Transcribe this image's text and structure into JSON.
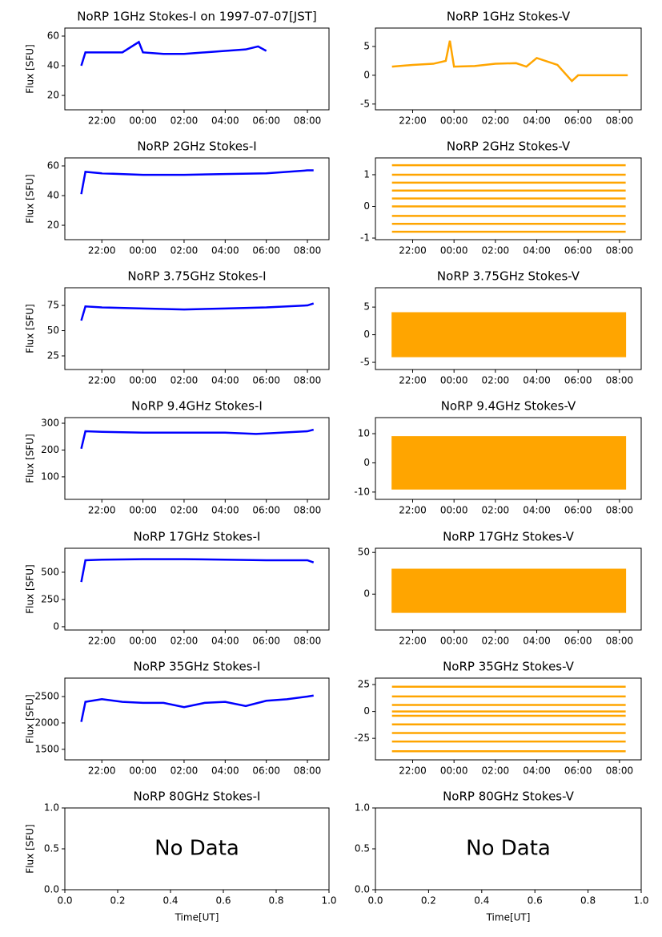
{
  "chart_data": [
    {
      "type": "line",
      "title": "NoRP 1GHz Stokes-I on 1997-07-07[JST]",
      "ylabel": "Flux [SFU]",
      "x": [
        21.0,
        21.2,
        22,
        23,
        23.8,
        24,
        25,
        26,
        27,
        28,
        29,
        29.6,
        30
      ],
      "series": [
        {
          "color": "#0000ff",
          "values": [
            40,
            49,
            49,
            49,
            56,
            49,
            48,
            48,
            49,
            50,
            51,
            53,
            50
          ]
        }
      ],
      "xlim": [
        20.2,
        33.05
      ],
      "xticks": [
        {
          "value": 22,
          "label": "22:00"
        },
        {
          "value": 24,
          "label": "00:00"
        },
        {
          "value": 26,
          "label": "02:00"
        },
        {
          "value": 28,
          "label": "04:00"
        },
        {
          "value": 30,
          "label": "06:00"
        },
        {
          "value": 32,
          "label": "08:00"
        }
      ],
      "ylim": [
        10.3,
        65.4
      ],
      "yticks": [
        20,
        40,
        60
      ]
    },
    {
      "type": "line",
      "title": "NoRP 1GHz Stokes-V",
      "x": [
        21.0,
        22,
        23,
        23.6,
        23.8,
        24,
        25,
        26,
        27,
        27.5,
        28,
        29,
        29.7,
        30,
        32.4
      ],
      "series": [
        {
          "color": "#ffa500",
          "values": [
            1.5,
            1.8,
            2,
            2.5,
            6,
            1.5,
            1.6,
            2,
            2.1,
            1.5,
            3,
            1.8,
            -1,
            0,
            0
          ]
        }
      ],
      "xlim": [
        20.2,
        33.05
      ],
      "xticks": [
        {
          "value": 22,
          "label": "22:00"
        },
        {
          "value": 24,
          "label": "00:00"
        },
        {
          "value": 26,
          "label": "02:00"
        },
        {
          "value": 28,
          "label": "04:00"
        },
        {
          "value": 30,
          "label": "06:00"
        },
        {
          "value": 32,
          "label": "08:00"
        }
      ],
      "ylim": [
        -6.0,
        8.2
      ],
      "yticks": [
        -5,
        0,
        5
      ]
    },
    {
      "type": "line",
      "title": "NoRP 2GHz Stokes-I",
      "ylabel": "Flux [SFU]",
      "x": [
        21.0,
        21.2,
        22,
        24,
        26,
        28,
        30,
        32,
        32.3
      ],
      "series": [
        {
          "color": "#0000ff",
          "values": [
            41,
            56,
            55,
            54,
            54,
            54.5,
            55,
            57,
            57
          ]
        }
      ],
      "xlim": [
        20.2,
        33.05
      ],
      "xticks": [
        {
          "value": 22,
          "label": "22:00"
        },
        {
          "value": 24,
          "label": "00:00"
        },
        {
          "value": 26,
          "label": "02:00"
        },
        {
          "value": 28,
          "label": "04:00"
        },
        {
          "value": 30,
          "label": "06:00"
        },
        {
          "value": 32,
          "label": "08:00"
        }
      ],
      "ylim": [
        10.3,
        65.4
      ],
      "yticks": [
        20,
        40,
        60
      ]
    },
    {
      "type": "line",
      "title": "NoRP 2GHz Stokes-V",
      "x": [
        21.0,
        32.3
      ],
      "series": [
        {
          "color": "#ffa500",
          "values": [
            1.3,
            1.3
          ]
        },
        {
          "color": "#ffa500",
          "values": [
            1.0,
            1.0
          ]
        },
        {
          "color": "#ffa500",
          "values": [
            0.75,
            0.75
          ]
        },
        {
          "color": "#ffa500",
          "values": [
            0.5,
            0.5
          ]
        },
        {
          "color": "#ffa500",
          "values": [
            0.25,
            0.25
          ]
        },
        {
          "color": "#ffa500",
          "values": [
            0,
            0
          ]
        },
        {
          "color": "#ffa500",
          "values": [
            -0.3,
            -0.3
          ]
        },
        {
          "color": "#ffa500",
          "values": [
            -0.55,
            -0.55
          ]
        },
        {
          "color": "#ffa500",
          "values": [
            -0.8,
            -0.8
          ]
        }
      ],
      "xlim": [
        20.2,
        33.05
      ],
      "xticks": [
        {
          "value": 22,
          "label": "22:00"
        },
        {
          "value": 24,
          "label": "00:00"
        },
        {
          "value": 26,
          "label": "02:00"
        },
        {
          "value": 28,
          "label": "04:00"
        },
        {
          "value": 30,
          "label": "06:00"
        },
        {
          "value": 32,
          "label": "08:00"
        }
      ],
      "ylim": [
        -1.05,
        1.53
      ],
      "yticks": [
        -1,
        0,
        1
      ]
    },
    {
      "type": "line",
      "title": "NoRP 3.75GHz Stokes-I",
      "ylabel": "Flux [SFU]",
      "x": [
        21.0,
        21.2,
        22,
        24,
        26,
        28,
        30,
        32,
        32.3
      ],
      "series": [
        {
          "color": "#0000ff",
          "values": [
            60,
            74,
            73,
            72,
            71,
            72,
            73,
            75,
            77
          ]
        }
      ],
      "xlim": [
        20.2,
        33.05
      ],
      "xticks": [
        {
          "value": 22,
          "label": "22:00"
        },
        {
          "value": 24,
          "label": "00:00"
        },
        {
          "value": 26,
          "label": "02:00"
        },
        {
          "value": 28,
          "label": "04:00"
        },
        {
          "value": 30,
          "label": "06:00"
        },
        {
          "value": 32,
          "label": "08:00"
        }
      ],
      "ylim": [
        11.5,
        92.5
      ],
      "yticks": [
        25,
        50,
        75
      ]
    },
    {
      "type": "band",
      "title": "NoRP 3.75GHz Stokes-V",
      "x": [
        21.0,
        24,
        28,
        32.3
      ],
      "series": [
        {
          "color": "#ffa500",
          "values": [
            -4,
            -4,
            -4,
            -4
          ]
        },
        {
          "color": "#ffa500",
          "values": [
            4,
            4,
            4,
            4
          ]
        }
      ],
      "xlim": [
        20.2,
        33.05
      ],
      "xticks": [
        {
          "value": 22,
          "label": "22:00"
        },
        {
          "value": 24,
          "label": "00:00"
        },
        {
          "value": 26,
          "label": "02:00"
        },
        {
          "value": 28,
          "label": "04:00"
        },
        {
          "value": 30,
          "label": "06:00"
        },
        {
          "value": 32,
          "label": "08:00"
        }
      ],
      "ylim": [
        -6.3,
        8.5
      ],
      "yticks": [
        -5,
        0,
        5
      ]
    },
    {
      "type": "line",
      "title": "NoRP 9.4GHz Stokes-I",
      "ylabel": "Flux [SFU]",
      "x": [
        21.0,
        21.2,
        22,
        24,
        26,
        28,
        29.5,
        30,
        32,
        32.3
      ],
      "series": [
        {
          "color": "#0000ff",
          "values": [
            205,
            270,
            268,
            265,
            265,
            265,
            260,
            262,
            270,
            276
          ]
        }
      ],
      "xlim": [
        20.2,
        33.05
      ],
      "xticks": [
        {
          "value": 22,
          "label": "22:00"
        },
        {
          "value": 24,
          "label": "00:00"
        },
        {
          "value": 26,
          "label": "02:00"
        },
        {
          "value": 28,
          "label": "04:00"
        },
        {
          "value": 30,
          "label": "06:00"
        },
        {
          "value": 32,
          "label": "08:00"
        }
      ],
      "ylim": [
        16,
        321
      ],
      "yticks": [
        100,
        200,
        300
      ]
    },
    {
      "type": "band",
      "title": "NoRP 9.4GHz Stokes-V",
      "x": [
        21.0,
        24,
        28,
        32.3
      ],
      "series": [
        {
          "color": "#ffa500",
          "values": [
            -9,
            -9,
            -9,
            -9
          ]
        },
        {
          "color": "#ffa500",
          "values": [
            9,
            9,
            9,
            9
          ]
        }
      ],
      "xlim": [
        20.2,
        33.05
      ],
      "xticks": [
        {
          "value": 22,
          "label": "22:00"
        },
        {
          "value": 24,
          "label": "00:00"
        },
        {
          "value": 26,
          "label": "02:00"
        },
        {
          "value": 28,
          "label": "04:00"
        },
        {
          "value": 30,
          "label": "06:00"
        },
        {
          "value": 32,
          "label": "08:00"
        }
      ],
      "ylim": [
        -12.5,
        15.5
      ],
      "yticks": [
        -10,
        0,
        10
      ]
    },
    {
      "type": "line",
      "title": "NoRP 17GHz Stokes-I",
      "ylabel": "Flux [SFU]",
      "x": [
        21.0,
        21.2,
        22,
        24,
        26,
        28,
        30,
        32,
        32.3
      ],
      "series": [
        {
          "color": "#0000ff",
          "values": [
            410,
            610,
            615,
            620,
            620,
            615,
            610,
            610,
            590
          ]
        }
      ],
      "xlim": [
        20.2,
        33.05
      ],
      "xticks": [
        {
          "value": 22,
          "label": "22:00"
        },
        {
          "value": 24,
          "label": "00:00"
        },
        {
          "value": 26,
          "label": "02:00"
        },
        {
          "value": 28,
          "label": "04:00"
        },
        {
          "value": 30,
          "label": "06:00"
        },
        {
          "value": 32,
          "label": "08:00"
        }
      ],
      "ylim": [
        -30,
        720
      ],
      "yticks": [
        0,
        250,
        500
      ]
    },
    {
      "type": "band",
      "title": "NoRP 17GHz Stokes-V",
      "x": [
        21.0,
        24,
        28,
        32.3
      ],
      "series": [
        {
          "color": "#ffa500",
          "values": [
            -22,
            -22,
            -22,
            -22
          ]
        },
        {
          "color": "#ffa500",
          "values": [
            30,
            30,
            30,
            30
          ]
        }
      ],
      "xlim": [
        20.2,
        33.05
      ],
      "xticks": [
        {
          "value": 22,
          "label": "22:00"
        },
        {
          "value": 24,
          "label": "00:00"
        },
        {
          "value": 26,
          "label": "02:00"
        },
        {
          "value": 28,
          "label": "04:00"
        },
        {
          "value": 30,
          "label": "06:00"
        },
        {
          "value": 32,
          "label": "08:00"
        }
      ],
      "ylim": [
        -43,
        55
      ],
      "yticks": [
        0,
        50
      ]
    },
    {
      "type": "line",
      "title": "NoRP 35GHz Stokes-I",
      "ylabel": "Flux [SFU]",
      "x": [
        21.0,
        21.2,
        22,
        23,
        24,
        25,
        26,
        27,
        28,
        29,
        30,
        31,
        32,
        32.3
      ],
      "series": [
        {
          "color": "#0000ff",
          "values": [
            2020,
            2400,
            2450,
            2400,
            2380,
            2380,
            2300,
            2380,
            2400,
            2320,
            2420,
            2450,
            2500,
            2520
          ]
        }
      ],
      "xlim": [
        20.2,
        33.05
      ],
      "xticks": [
        {
          "value": 22,
          "label": "22:00"
        },
        {
          "value": 24,
          "label": "00:00"
        },
        {
          "value": 26,
          "label": "02:00"
        },
        {
          "value": 28,
          "label": "04:00"
        },
        {
          "value": 30,
          "label": "06:00"
        },
        {
          "value": 32,
          "label": "08:00"
        }
      ],
      "ylim": [
        1300,
        2850
      ],
      "yticks": [
        1500,
        2000,
        2500
      ]
    },
    {
      "type": "line",
      "title": "NoRP 35GHz Stokes-V",
      "x": [
        21.0,
        32.3
      ],
      "series": [
        {
          "color": "#ffa500",
          "values": [
            23,
            23
          ]
        },
        {
          "color": "#ffa500",
          "values": [
            14,
            14
          ]
        },
        {
          "color": "#ffa500",
          "values": [
            6,
            6
          ]
        },
        {
          "color": "#ffa500",
          "values": [
            0,
            0
          ]
        },
        {
          "color": "#ffa500",
          "values": [
            -4,
            -4
          ]
        },
        {
          "color": "#ffa500",
          "values": [
            -12,
            -12
          ]
        },
        {
          "color": "#ffa500",
          "values": [
            -20,
            -20
          ]
        },
        {
          "color": "#ffa500",
          "values": [
            -28,
            -28
          ]
        },
        {
          "color": "#ffa500",
          "values": [
            -37,
            -37
          ]
        }
      ],
      "xlim": [
        20.2,
        33.05
      ],
      "xticks": [
        {
          "value": 22,
          "label": "22:00"
        },
        {
          "value": 24,
          "label": "00:00"
        },
        {
          "value": 26,
          "label": "02:00"
        },
        {
          "value": 28,
          "label": "04:00"
        },
        {
          "value": 30,
          "label": "06:00"
        },
        {
          "value": 32,
          "label": "08:00"
        }
      ],
      "ylim": [
        -45,
        31
      ],
      "yticks": [
        -25,
        0,
        25
      ]
    },
    {
      "type": "empty",
      "title": "NoRP 80GHz Stokes-I",
      "ylabel": "Flux [SFU]",
      "xlabel": "Time[UT]",
      "annotation": "No Data",
      "xlim": [
        0,
        1
      ],
      "xticks": [
        {
          "value": 0,
          "label": "0.0"
        },
        {
          "value": 0.2,
          "label": "0.2"
        },
        {
          "value": 0.4,
          "label": "0.4"
        },
        {
          "value": 0.6,
          "label": "0.6"
        },
        {
          "value": 0.8,
          "label": "0.8"
        },
        {
          "value": 1,
          "label": "1.0"
        }
      ],
      "ylim": [
        0,
        1
      ],
      "yticks": [
        {
          "value": 0,
          "label": "0.0"
        },
        {
          "value": 0.5,
          "label": "0.5"
        },
        {
          "value": 1,
          "label": "1.0"
        }
      ]
    },
    {
      "type": "empty",
      "title": "NoRP 80GHz Stokes-V",
      "xlabel": "Time[UT]",
      "annotation": "No Data",
      "xlim": [
        0,
        1
      ],
      "xticks": [
        {
          "value": 0,
          "label": "0.0"
        },
        {
          "value": 0.2,
          "label": "0.2"
        },
        {
          "value": 0.4,
          "label": "0.4"
        },
        {
          "value": 0.6,
          "label": "0.6"
        },
        {
          "value": 0.8,
          "label": "0.8"
        },
        {
          "value": 1,
          "label": "1.0"
        }
      ],
      "ylim": [
        0,
        1
      ],
      "yticks": [
        {
          "value": 0,
          "label": "0.0"
        },
        {
          "value": 0.5,
          "label": "0.5"
        },
        {
          "value": 1,
          "label": "1.0"
        }
      ]
    }
  ]
}
